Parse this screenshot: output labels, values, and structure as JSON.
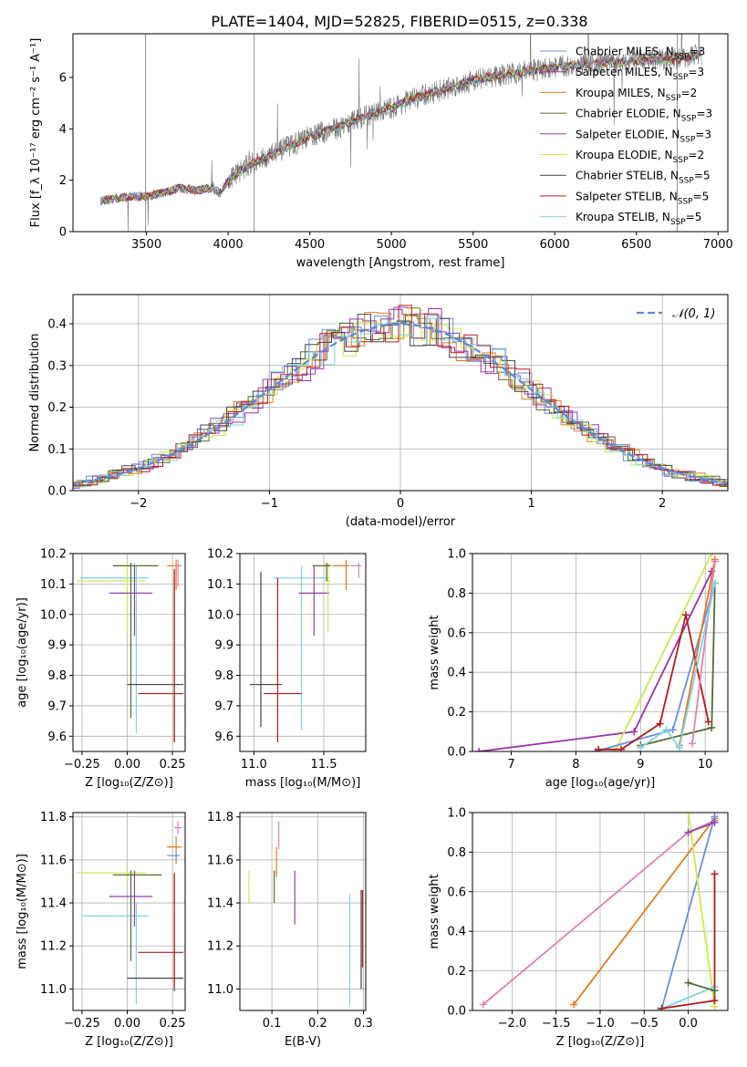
{
  "colors": {
    "chabrier_miles": "#6a8fe0",
    "salpeter_miles": "#9b2fb0",
    "kroupa_miles": "#e07b1e",
    "chabrier_elodie": "#556b2f",
    "salpeter_elodie": "#8e44ad",
    "kroupa_elodie": "#cde84a",
    "chabrier_stelib": "#444444",
    "salpeter_stelib": "#b31b1b",
    "kroupa_stelib": "#7fd3e0",
    "gaussian": "#5b8bd8",
    "spectrum": "#777777",
    "pink": "#e37fb6"
  },
  "chart_data": [
    {
      "id": "spectrum",
      "type": "line",
      "title": "PLATE=1404, MJD=52825, FIBERID=0515, z=0.338",
      "xlabel": "wavelength [Angstrom, rest frame]",
      "ylabel": "Flux [f_λ 10⁻¹⁷ erg cm⁻² s⁻¹ A⁻¹]",
      "xlim": [
        3050,
        7060
      ],
      "ylim": [
        0,
        7.7
      ],
      "xticks": [
        3500,
        4000,
        4500,
        5000,
        5500,
        6000,
        6500,
        7000
      ],
      "yticks": [
        0,
        2,
        4,
        6
      ],
      "grid": false,
      "legend_position": "top-right",
      "legend": [
        {
          "label": "Chabrier MILES, N",
          "sub": "SSP",
          "suffix": "=3",
          "color_key": "chabrier_miles"
        },
        {
          "label": "Salpeter MILES, N",
          "sub": "SSP",
          "suffix": "=3",
          "color_key": "salpeter_miles"
        },
        {
          "label": "Kroupa MILES, N",
          "sub": "SSP",
          "suffix": "=2",
          "color_key": "kroupa_miles"
        },
        {
          "label": "Chabrier ELODIE, N",
          "sub": "SSP",
          "suffix": "=3",
          "color_key": "chabrier_elodie"
        },
        {
          "label": "Salpeter ELODIE, N",
          "sub": "SSP",
          "suffix": "=3",
          "color_key": "salpeter_elodie"
        },
        {
          "label": "Kroupa ELODIE, N",
          "sub": "SSP",
          "suffix": "=2",
          "color_key": "kroupa_elodie"
        },
        {
          "label": "Chabrier STELIB, N",
          "sub": "SSP",
          "suffix": "=5",
          "color_key": "chabrier_stelib"
        },
        {
          "label": "Salpeter STELIB, N",
          "sub": "SSP",
          "suffix": "=5",
          "color_key": "salpeter_stelib"
        },
        {
          "label": "Kroupa STELIB, N",
          "sub": "SSP",
          "suffix": "=5",
          "color_key": "kroupa_stelib"
        }
      ],
      "continuum": {
        "x": [
          3220,
          3300,
          3400,
          3500,
          3600,
          3700,
          3800,
          3900,
          3950,
          4000,
          4100,
          4200,
          4300,
          4400,
          4500,
          4600,
          4700,
          4800,
          4900,
          5000,
          5100,
          5200,
          5300,
          5400,
          5500,
          5600,
          5700,
          5800,
          5900,
          6000,
          6100,
          6200,
          6300,
          6400,
          6500,
          6600,
          6700,
          6800,
          6900
        ],
        "y": [
          1.2,
          1.28,
          1.35,
          1.38,
          1.5,
          1.7,
          1.6,
          1.7,
          1.5,
          2.0,
          2.5,
          2.8,
          3.1,
          3.4,
          3.7,
          3.9,
          4.1,
          4.4,
          4.6,
          4.8,
          5.1,
          5.3,
          5.5,
          5.7,
          5.9,
          6.0,
          6.1,
          6.2,
          6.3,
          6.4,
          6.45,
          6.5,
          6.55,
          6.6,
          6.65,
          6.65,
          6.7,
          6.8,
          6.9
        ]
      }
    },
    {
      "id": "residuals",
      "type": "line",
      "xlabel": "(data-model)/error",
      "ylabel": "Normed distribution",
      "xlim": [
        -2.5,
        2.5
      ],
      "ylim": [
        0,
        0.47
      ],
      "xticks": [
        -2,
        -1,
        0,
        1,
        2
      ],
      "xticklabels": [
        "−2",
        "−1",
        "0",
        "1",
        "2"
      ],
      "yticks": [
        0,
        0.1,
        0.2,
        0.3,
        0.4
      ],
      "yticklabels": [
        "0.0",
        "0.1",
        "0.2",
        "0.3",
        "0.4"
      ],
      "grid": true,
      "legend_position": "top-right",
      "legend": [
        {
          "label": "𝒩(0, 1)",
          "color_key": "gaussian",
          "style": "dashed"
        }
      ],
      "bin_width": 0.1
    },
    {
      "id": "age_vs_Z",
      "type": "scatter",
      "xlabel": "Z [log₁₀(Z/Z⊙)]",
      "ylabel": "age  [log₁₀(age/yr)]",
      "xlim": [
        -0.3,
        0.32
      ],
      "ylim": [
        9.55,
        10.2
      ],
      "xticks": [
        -0.25,
        0,
        0.25
      ],
      "xticklabels": [
        "−0.25",
        "0.00",
        "0.25"
      ],
      "yticks": [
        9.6,
        9.7,
        9.8,
        9.9,
        10.0,
        10.1,
        10.2
      ],
      "yticklabels": [
        "9.6",
        "9.7",
        "9.8",
        "9.9",
        "10.0",
        "10.1",
        "10.2"
      ],
      "grid": true,
      "points": [
        {
          "x": 0.04,
          "y": 10.12,
          "xerr": [
            0.3,
            0.06
          ],
          "yerr": [
            0.05,
            0.05
          ],
          "color_key": "kroupa_stelib"
        },
        {
          "x": 0.05,
          "y": 10.12,
          "xerr": [
            0.3,
            0.07
          ],
          "yerr": [
            0.51,
            0.04
          ],
          "color_key": "kroupa_stelib"
        },
        {
          "x": 0.0,
          "y": 10.11,
          "xerr": [
            0.28,
            0.1
          ],
          "yerr": [
            0.17,
            0.06
          ],
          "color_key": "kroupa_elodie"
        },
        {
          "x": 0.04,
          "y": 10.07,
          "xerr": [
            0.14,
            0.1
          ],
          "yerr": [
            0.14,
            0.09
          ],
          "color_key": "salpeter_elodie"
        },
        {
          "x": 0.02,
          "y": 10.16,
          "xerr": [
            0.1,
            0.15
          ],
          "yerr": [
            0.5,
            0.01
          ],
          "color_key": "chabrier_elodie"
        },
        {
          "x": 0.26,
          "y": 9.77,
          "xerr": [
            0.26,
            0.05
          ],
          "yerr": [
            0.19,
            0.38
          ],
          "color_key": "chabrier_stelib"
        },
        {
          "x": 0.26,
          "y": 9.74,
          "xerr": [
            0.2,
            0.05
          ],
          "yerr": [
            0.16,
            0.4
          ],
          "color_key": "salpeter_stelib"
        },
        {
          "x": 0.27,
          "y": 10.16,
          "xerr": [
            0.05,
            0.03
          ],
          "yerr": [
            0.08,
            0.02
          ],
          "color_key": "kroupa_miles"
        },
        {
          "x": 0.28,
          "y": 10.16,
          "xerr": [
            0.02,
            0.02
          ],
          "yerr": [
            0.07,
            0.02
          ],
          "color_key": "pink"
        }
      ]
    },
    {
      "id": "age_vs_mass",
      "type": "scatter",
      "xlabel": "mass [log₁₀(M/M⊙)]",
      "ylabel": "",
      "xlim": [
        10.9,
        11.8
      ],
      "ylim": [
        9.55,
        10.2
      ],
      "xticks": [
        11.0,
        11.5
      ],
      "xticklabels": [
        "11.0",
        "11.5"
      ],
      "yticks": [
        9.6,
        9.7,
        9.8,
        9.9,
        10.0,
        10.1,
        10.2
      ],
      "yticklabels": [
        "9.6",
        "9.7",
        "9.8",
        "9.9",
        "10.0",
        "10.1",
        "10.2"
      ],
      "grid": true,
      "points": [
        {
          "x": 11.34,
          "y": 10.12,
          "xerr": [
            0.2,
            0.2
          ],
          "yerr": [
            0.5,
            0.04
          ],
          "color_key": "kroupa_stelib"
        },
        {
          "x": 11.43,
          "y": 10.07,
          "xerr": [
            0.11,
            0.11
          ],
          "yerr": [
            0.14,
            0.09
          ],
          "color_key": "salpeter_elodie"
        },
        {
          "x": 11.53,
          "y": 10.11,
          "xerr": [
            0.02,
            0.02
          ],
          "yerr": [
            0.17,
            0.06
          ],
          "color_key": "kroupa_elodie"
        },
        {
          "x": 11.52,
          "y": 10.16,
          "xerr": [
            0.1,
            0.03
          ],
          "yerr": [
            0.05,
            0.01
          ],
          "color_key": "chabrier_elodie"
        },
        {
          "x": 11.05,
          "y": 9.77,
          "xerr": [
            0.08,
            0.15
          ],
          "yerr": [
            0.14,
            0.37
          ],
          "color_key": "chabrier_stelib"
        },
        {
          "x": 11.17,
          "y": 9.74,
          "xerr": [
            0.1,
            0.17
          ],
          "yerr": [
            0.16,
            0.38
          ],
          "color_key": "salpeter_stelib"
        },
        {
          "x": 11.66,
          "y": 10.16,
          "xerr": [
            0.1,
            0.02
          ],
          "yerr": [
            0.08,
            0.02
          ],
          "color_key": "kroupa_miles"
        },
        {
          "x": 11.75,
          "y": 10.16,
          "xerr": [
            0.06,
            0.02
          ],
          "yerr": [
            0.04,
            0.01
          ],
          "color_key": "pink"
        }
      ]
    },
    {
      "id": "weight_vs_age",
      "type": "line",
      "xlabel": "age  [log₁₀(age/yr)]",
      "ylabel": "mass weight",
      "xlim": [
        6.4,
        10.35
      ],
      "ylim": [
        0,
        1.0
      ],
      "xticks": [
        7,
        8,
        9,
        10
      ],
      "xticklabels": [
        "7",
        "8",
        "9",
        "10"
      ],
      "yticks": [
        0,
        0.2,
        0.4,
        0.6,
        0.8,
        1.0
      ],
      "yticklabels": [
        "0.0",
        "0.2",
        "0.4",
        "0.6",
        "0.8",
        "1.0"
      ],
      "grid": true,
      "series": [
        {
          "color_key": "salpeter_miles",
          "x": [
            6.5,
            8.9,
            10.1
          ],
          "y": [
            0.0,
            0.1,
            0.91
          ]
        },
        {
          "color_key": "kroupa_elodie",
          "x": [
            8.6,
            10.1
          ],
          "y": [
            0.0,
            1.0
          ]
        },
        {
          "color_key": "chabrier_miles",
          "x": [
            8.3,
            9.5,
            10.15
          ],
          "y": [
            0.0,
            0.11,
            0.85
          ]
        },
        {
          "color_key": "salpeter_stelib",
          "x": [
            8.35,
            8.7,
            9.3,
            9.7,
            10.05
          ],
          "y": [
            0.01,
            0.01,
            0.14,
            0.69,
            0.15
          ]
        },
        {
          "color_key": "kroupa_miles",
          "x": [
            9.6,
            10.15
          ],
          "y": [
            0.03,
            0.97
          ]
        },
        {
          "color_key": "chabrier_elodie",
          "x": [
            9.0,
            10.1,
            10.15
          ],
          "y": [
            0.03,
            0.12,
            0.85
          ]
        },
        {
          "color_key": "pink",
          "x": [
            9.8,
            10.15
          ],
          "y": [
            0.04,
            0.96
          ]
        },
        {
          "color_key": "kroupa_stelib",
          "x": [
            9.0,
            9.4,
            9.6,
            10.15
          ],
          "y": [
            0.02,
            0.11,
            0.02,
            0.85
          ]
        }
      ]
    },
    {
      "id": "mass_vs_Z",
      "type": "scatter",
      "xlabel": "Z [log₁₀(Z/Z⊙)]",
      "ylabel": "mass [log₁₀(M/M⊙)]",
      "xlim": [
        -0.3,
        0.32
      ],
      "ylim": [
        10.9,
        11.82
      ],
      "xticks": [
        -0.25,
        0,
        0.25
      ],
      "xticklabels": [
        "−0.25",
        "0.00",
        "0.25"
      ],
      "yticks": [
        11.0,
        11.2,
        11.4,
        11.6,
        11.8
      ],
      "yticklabels": [
        "11.0",
        "11.2",
        "11.4",
        "11.6",
        "11.8"
      ],
      "grid": true,
      "points": [
        {
          "x": 0.05,
          "y": 11.34,
          "xerr": [
            0.3,
            0.07
          ],
          "yerr": [
            0.41,
            0.06
          ],
          "color_key": "kroupa_stelib"
        },
        {
          "x": 0.0,
          "y": 11.54,
          "xerr": [
            0.28,
            0.1
          ],
          "yerr": [
            0.04,
            0.02
          ],
          "color_key": "kroupa_elodie"
        },
        {
          "x": 0.04,
          "y": 11.43,
          "xerr": [
            0.14,
            0.1
          ],
          "yerr": [
            0.14,
            0.12
          ],
          "color_key": "salpeter_elodie"
        },
        {
          "x": 0.02,
          "y": 11.53,
          "xerr": [
            0.1,
            0.17
          ],
          "yerr": [
            0.4,
            0.02
          ],
          "color_key": "chabrier_elodie"
        },
        {
          "x": 0.26,
          "y": 11.05,
          "xerr": [
            0.26,
            0.05
          ],
          "yerr": [
            0.06,
            0.48
          ],
          "color_key": "chabrier_stelib"
        },
        {
          "x": 0.26,
          "y": 11.17,
          "xerr": [
            0.2,
            0.05
          ],
          "yerr": [
            0.16,
            0.37
          ],
          "color_key": "salpeter_stelib"
        },
        {
          "x": 0.27,
          "y": 11.66,
          "xerr": [
            0.05,
            0.03
          ],
          "yerr": [
            0.08,
            0.05
          ],
          "color_key": "kroupa_miles"
        },
        {
          "x": 0.27,
          "y": 11.62,
          "xerr": [
            0.05,
            0.02
          ],
          "yerr": [
            0.02,
            0.02
          ],
          "color_key": "chabrier_miles"
        },
        {
          "x": 0.28,
          "y": 11.75,
          "xerr": [
            0.02,
            0.02
          ],
          "yerr": [
            0.03,
            0.03
          ],
          "color_key": "pink"
        }
      ]
    },
    {
      "id": "mass_vs_ebv",
      "type": "scatter",
      "xlabel": "E(B-V)",
      "ylabel": "",
      "xlim": [
        0.03,
        0.305
      ],
      "ylim": [
        10.9,
        11.82
      ],
      "xticks": [
        0.1,
        0.2,
        0.3
      ],
      "xticklabels": [
        "0.1",
        "0.2",
        "0.3"
      ],
      "yticks": [
        11.0,
        11.2,
        11.4,
        11.6,
        11.8
      ],
      "yticklabels": [
        "11.0",
        "11.2",
        "11.4",
        "11.6",
        "11.8"
      ],
      "grid": true,
      "points": [
        {
          "x": 0.05,
          "y": 11.5,
          "xerr": [
            0,
            0
          ],
          "yerr": [
            0.1,
            0.05
          ],
          "color_key": "kroupa_elodie"
        },
        {
          "x": 0.105,
          "y": 11.5,
          "xerr": [
            0,
            0
          ],
          "yerr": [
            0.1,
            0.05
          ],
          "color_key": "chabrier_elodie"
        },
        {
          "x": 0.11,
          "y": 11.62,
          "xerr": [
            0,
            0
          ],
          "yerr": [
            0.1,
            0.04
          ],
          "color_key": "kroupa_miles"
        },
        {
          "x": 0.115,
          "y": 11.72,
          "xerr": [
            0,
            0
          ],
          "yerr": [
            0.07,
            0.06
          ],
          "color_key": "pink"
        },
        {
          "x": 0.15,
          "y": 11.43,
          "xerr": [
            0,
            0
          ],
          "yerr": [
            0.13,
            0.12
          ],
          "color_key": "salpeter_elodie"
        },
        {
          "x": 0.27,
          "y": 11.2,
          "xerr": [
            0,
            0
          ],
          "yerr": [
            0.28,
            0.24
          ],
          "color_key": "kroupa_stelib"
        },
        {
          "x": 0.295,
          "y": 11.2,
          "xerr": [
            0,
            0
          ],
          "yerr": [
            0.2,
            0.26
          ],
          "color_key": "chabrier_stelib"
        },
        {
          "x": 0.298,
          "y": 11.3,
          "xerr": [
            0,
            0
          ],
          "yerr": [
            0.2,
            0.16
          ],
          "color_key": "salpeter_stelib"
        }
      ]
    },
    {
      "id": "weight_vs_Z",
      "type": "line",
      "xlabel": "Z [log₁₀(Z/Z⊙)]",
      "ylabel": "mass weight",
      "xlim": [
        -2.45,
        0.45
      ],
      "ylim": [
        0,
        1.0
      ],
      "xticks": [
        -2.0,
        -1.5,
        -1.0,
        -0.5,
        0.0
      ],
      "xticklabels": [
        "−2.0",
        "−1.5",
        "−1.0",
        "−0.5",
        "0.0"
      ],
      "yticks": [
        0,
        0.2,
        0.4,
        0.6,
        0.8,
        1.0
      ],
      "yticklabels": [
        "0.0",
        "0.2",
        "0.4",
        "0.6",
        "0.8",
        "1.0"
      ],
      "grid": true,
      "series": [
        {
          "color_key": "pink",
          "x": [
            -2.33,
            0.0,
            0.3
          ],
          "y": [
            0.03,
            0.9,
            0.96
          ]
        },
        {
          "color_key": "kroupa_miles",
          "x": [
            -1.3,
            0.3
          ],
          "y": [
            0.03,
            0.97
          ]
        },
        {
          "color_key": "chabrier_miles",
          "x": [
            -0.3,
            0.3
          ],
          "y": [
            0.01,
            0.98
          ]
        },
        {
          "color_key": "kroupa_elodie",
          "x": [
            0.0,
            0.3
          ],
          "y": [
            1.0,
            0.02
          ]
        },
        {
          "color_key": "kroupa_stelib",
          "x": [
            -0.35,
            0.3
          ],
          "y": [
            0.0,
            0.12
          ]
        },
        {
          "color_key": "salpeter_stelib",
          "x": [
            -0.3,
            0.3,
            0.3
          ],
          "y": [
            0.01,
            0.05,
            0.69
          ]
        },
        {
          "color_key": "chabrier_elodie",
          "x": [
            0.0,
            0.3
          ],
          "y": [
            0.14,
            0.1
          ]
        },
        {
          "color_key": "salpeter_elodie",
          "x": [
            0.0,
            0.3
          ],
          "y": [
            0.9,
            0.95
          ]
        }
      ]
    }
  ]
}
